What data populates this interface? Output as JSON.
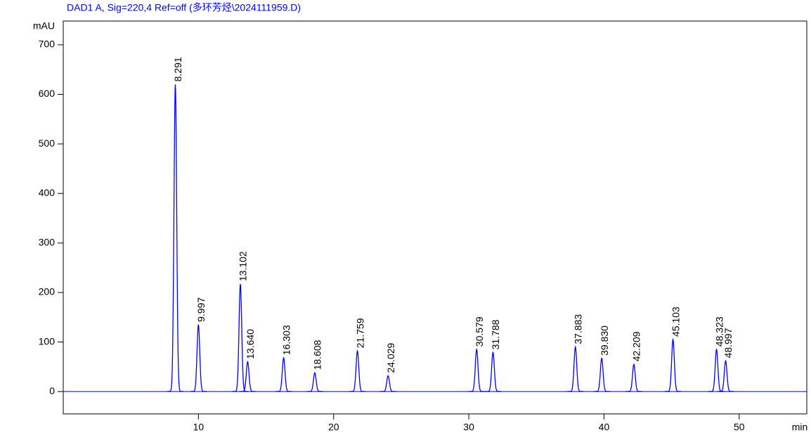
{
  "chart_data": {
    "type": "chromatogram",
    "title": "DAD1 A, Sig=220,4 Ref=off (多环芳烃\\2024111959.D)",
    "y_label": "mAU",
    "x_label": "min",
    "x": [
      8.291,
      9.997,
      13.102,
      13.64,
      16.303,
      18.608,
      21.759,
      24.029,
      30.579,
      31.788,
      37.883,
      39.83,
      42.209,
      45.103,
      48.323,
      48.997
    ],
    "x_labels": [
      "8.291",
      "9.997",
      "13.102",
      "13.640",
      "16.303",
      "18.608",
      "21.759",
      "24.029",
      "30.579",
      "31.788",
      "37.883",
      "39.830",
      "42.209",
      "45.103",
      "48.323",
      "48.997"
    ],
    "series": [
      {
        "color": "#0000ff",
        "values": [
          620,
          135,
          217,
          60,
          68,
          38,
          82,
          32,
          85,
          79,
          90,
          67,
          55,
          105,
          85,
          62
        ]
      }
    ],
    "xlim": [
      0,
      55
    ],
    "ylim": [
      -45,
      748
    ],
    "xticks": [
      10,
      20,
      30,
      40,
      50
    ],
    "yticks": [
      0,
      100,
      200,
      300,
      400,
      500,
      600,
      700
    ]
  }
}
